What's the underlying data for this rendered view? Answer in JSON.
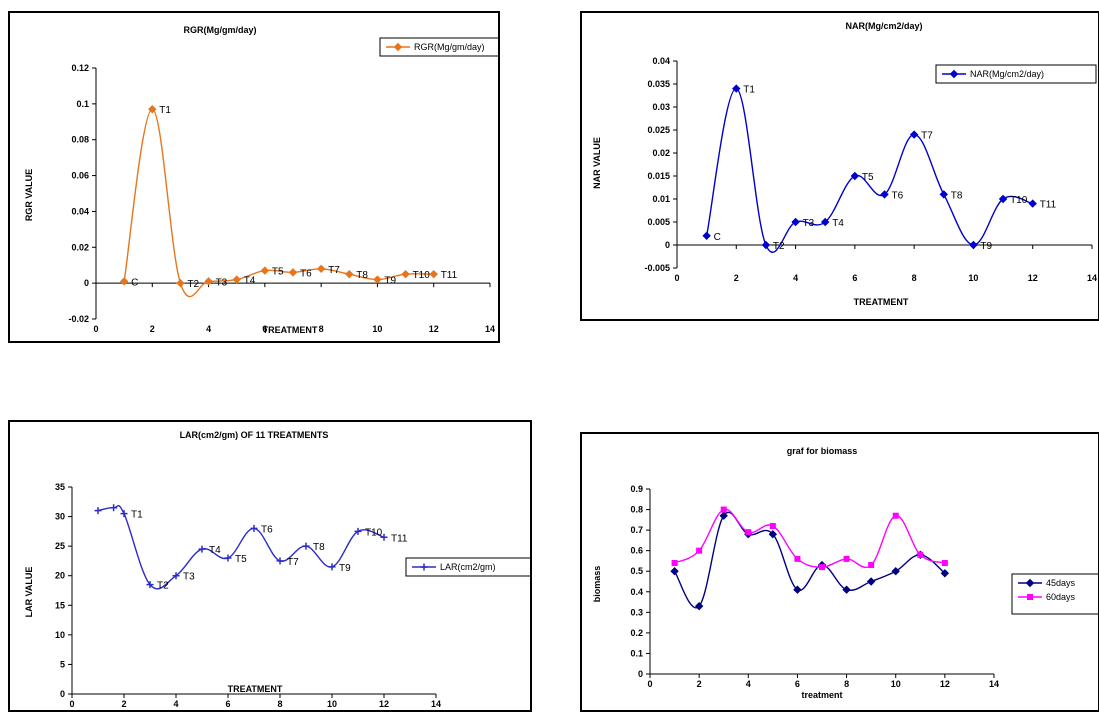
{
  "colors": {
    "rgr": "#E8741E",
    "nar": "#0000CC",
    "lar": "#2B2BCC",
    "d45": "#000080",
    "d60": "#FF00FF"
  },
  "chart_data": [
    {
      "id": "rgr",
      "type": "line",
      "title": "RGR(Mg/gm/day)",
      "xlabel": "TREATMENT",
      "ylabel": "RGR VALUE",
      "xlim": [
        0,
        14
      ],
      "ylim": [
        -0.02,
        0.12
      ],
      "xticks": [
        "0",
        "2",
        "4",
        "6",
        "8",
        "10",
        "12",
        "14"
      ],
      "yticks": [
        "-0.02",
        "0",
        "0.02",
        "0.04",
        "0.06",
        "0.08",
        "0.1",
        "0.12"
      ],
      "legend": {
        "position": "top-right"
      },
      "series": [
        {
          "name": "RGR(Mg/gm/day)",
          "color": "#E8741E",
          "x": [
            1,
            2,
            3,
            4,
            5,
            6,
            7,
            8,
            9,
            10,
            11,
            12
          ],
          "y": [
            0.001,
            0.097,
            0.0,
            0.001,
            0.002,
            0.007,
            0.006,
            0.008,
            0.005,
            0.002,
            0.005,
            0.005
          ],
          "labels": [
            "C",
            "T1",
            "T2",
            "T3",
            "T4",
            "T5",
            "T6",
            "T7",
            "T8",
            "T9",
            "T10",
            "T11"
          ]
        }
      ]
    },
    {
      "id": "nar",
      "type": "line",
      "title": "NAR(Mg/cm2/day)",
      "xlabel": "TREATMENT",
      "ylabel": "NAR VALUE",
      "xlim": [
        0,
        14
      ],
      "ylim": [
        -0.005,
        0.04
      ],
      "xticks": [
        "0",
        "2",
        "4",
        "6",
        "8",
        "10",
        "12",
        "14"
      ],
      "yticks": [
        "-0.005",
        "0",
        "0.005",
        "0.01",
        "0.015",
        "0.02",
        "0.025",
        "0.03",
        "0.035",
        "0.04"
      ],
      "legend": {
        "position": "top-right"
      },
      "series": [
        {
          "name": "NAR(Mg/cm2/day)",
          "color": "#0000CC",
          "x": [
            1,
            2,
            3,
            4,
            5,
            6,
            7,
            8,
            9,
            10,
            11,
            12
          ],
          "y": [
            0.002,
            0.034,
            0.0,
            0.005,
            0.005,
            0.015,
            0.011,
            0.024,
            0.011,
            0.0,
            0.01,
            0.009
          ],
          "labels": [
            "C",
            "T1",
            "T2",
            "T3",
            "T4",
            "T5",
            "T6",
            "T7",
            "T8",
            "T9",
            "T10",
            "T11"
          ]
        }
      ]
    },
    {
      "id": "lar",
      "type": "line",
      "title": "LAR(cm2/gm) OF 11 TREATMENTS",
      "xlabel": "TREATMENT",
      "ylabel": "LAR VALUE",
      "xlim": [
        0,
        14
      ],
      "ylim": [
        0,
        35
      ],
      "xticks": [
        "0",
        "2",
        "4",
        "6",
        "8",
        "10",
        "12",
        "14"
      ],
      "yticks": [
        "0",
        "5",
        "10",
        "15",
        "20",
        "25",
        "30",
        "35"
      ],
      "legend": {
        "position": "right"
      },
      "series": [
        {
          "name": "LAR(cm2/gm)",
          "color": "#2B2BCC",
          "x": [
            1,
            1.6,
            2,
            3,
            4,
            5,
            6,
            7,
            8,
            9,
            10,
            11,
            12
          ],
          "y": [
            31,
            31.5,
            30.5,
            18.5,
            20,
            24.5,
            23,
            28,
            22.5,
            25,
            21.5,
            27.5,
            26.5
          ],
          "labels": [
            "",
            "",
            "T1",
            "T2",
            "T3",
            "T4",
            "T5",
            "T6",
            "T7",
            "T8",
            "T9",
            "T10",
            "T11"
          ]
        }
      ]
    },
    {
      "id": "biomass",
      "type": "line",
      "title": "graf for biomass",
      "xlabel": "treatment",
      "ylabel": "biomass",
      "xlim": [
        0,
        14
      ],
      "ylim": [
        0,
        0.9
      ],
      "xticks": [
        "0",
        "2",
        "4",
        "6",
        "8",
        "10",
        "12",
        "14"
      ],
      "yticks": [
        "0",
        "0.1",
        "0.2",
        "0.3",
        "0.4",
        "0.5",
        "0.6",
        "0.7",
        "0.8",
        "0.9"
      ],
      "legend": {
        "position": "right"
      },
      "series": [
        {
          "name": "45days",
          "color": "#000080",
          "x": [
            1,
            2,
            3,
            4,
            5,
            6,
            7,
            8,
            9,
            10,
            11,
            12
          ],
          "y": [
            0.5,
            0.33,
            0.77,
            0.68,
            0.68,
            0.41,
            0.53,
            0.41,
            0.45,
            0.5,
            0.58,
            0.49
          ]
        },
        {
          "name": "60days",
          "color": "#FF00FF",
          "x": [
            1,
            2,
            3,
            4,
            5,
            6,
            7,
            8,
            9,
            10,
            11,
            12
          ],
          "y": [
            0.54,
            0.6,
            0.8,
            0.69,
            0.72,
            0.56,
            0.52,
            0.56,
            0.53,
            0.77,
            0.58,
            0.54
          ]
        }
      ]
    }
  ]
}
